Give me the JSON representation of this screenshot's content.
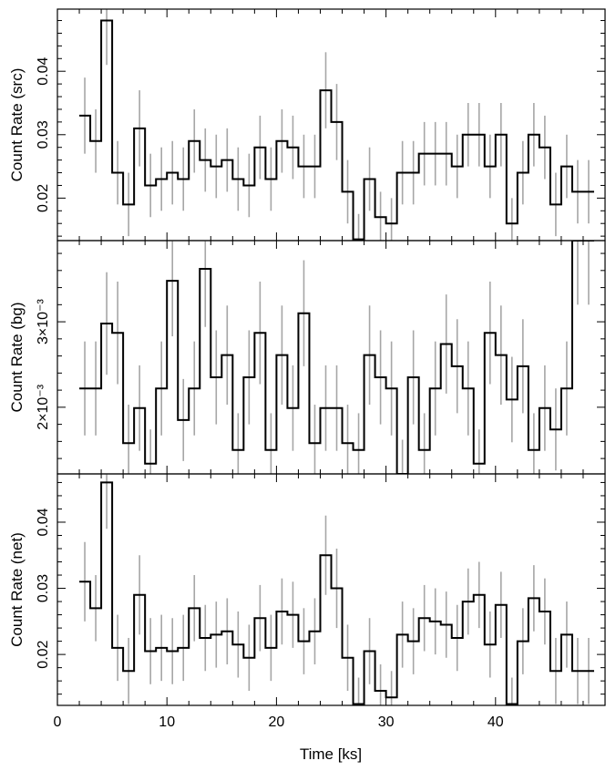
{
  "chart_data": {
    "type": "line",
    "style": "step-with-error-bars",
    "xlabel": "Time [ks]",
    "xlim": [
      0,
      50
    ],
    "xticks": [
      0,
      10,
      20,
      30,
      40
    ],
    "bin_width": 1.0,
    "x": [
      2.5,
      3.5,
      4.5,
      5.5,
      6.5,
      7.5,
      8.5,
      9.5,
      10.5,
      11.5,
      12.5,
      13.5,
      14.5,
      15.5,
      16.5,
      17.5,
      18.5,
      19.5,
      20.5,
      21.5,
      22.5,
      23.5,
      24.5,
      25.5,
      26.5,
      27.5,
      28.5,
      29.5,
      30.5,
      31.5,
      32.5,
      33.5,
      34.5,
      35.5,
      36.5,
      37.5,
      38.5,
      39.5,
      40.5,
      41.5,
      42.5,
      43.5,
      44.5,
      45.5,
      46.5,
      47.5,
      48.5
    ],
    "panels": [
      {
        "ylabel": "Count Rate (src)",
        "ylim": [
          0.0133,
          0.0498
        ],
        "yticks": [
          0.02,
          0.03,
          0.04
        ],
        "ytick_labels": [
          "0.02",
          "0.03",
          "0.04"
        ],
        "values": [
          0.033,
          0.029,
          0.048,
          0.024,
          0.019,
          0.031,
          0.022,
          0.023,
          0.024,
          0.023,
          0.029,
          0.026,
          0.025,
          0.026,
          0.023,
          0.022,
          0.028,
          0.023,
          0.029,
          0.028,
          0.025,
          0.025,
          0.037,
          0.032,
          0.021,
          0.0135,
          0.023,
          0.017,
          0.016,
          0.024,
          0.024,
          0.027,
          0.027,
          0.027,
          0.025,
          0.03,
          0.03,
          0.025,
          0.03,
          0.016,
          0.024,
          0.03,
          0.028,
          0.019,
          0.025,
          0.021,
          0.021
        ],
        "errors": [
          0.006,
          0.005,
          0.007,
          0.005,
          0.005,
          0.006,
          0.005,
          0.005,
          0.005,
          0.005,
          0.005,
          0.005,
          0.005,
          0.005,
          0.005,
          0.005,
          0.005,
          0.005,
          0.005,
          0.005,
          0.005,
          0.005,
          0.006,
          0.006,
          0.005,
          0.004,
          0.005,
          0.004,
          0.004,
          0.005,
          0.005,
          0.005,
          0.005,
          0.005,
          0.005,
          0.005,
          0.005,
          0.005,
          0.005,
          0.004,
          0.005,
          0.005,
          0.005,
          0.005,
          0.005,
          0.005,
          0.005
        ]
      },
      {
        "ylabel": "Count Rate (bg)",
        "ylim": [
          0.00122,
          0.00395
        ],
        "yticks": [
          0.002,
          0.003
        ],
        "ytick_labels": [
          "2×10⁻³",
          "3×10⁻³"
        ],
        "values": [
          0.00222,
          0.00222,
          0.00298,
          0.00287,
          0.00158,
          0.00199,
          0.00134,
          0.00222,
          0.00348,
          0.00185,
          0.00222,
          0.00362,
          0.00235,
          0.00261,
          0.0015,
          0.00235,
          0.00287,
          0.0015,
          0.00261,
          0.00199,
          0.0031,
          0.00158,
          0.00199,
          0.00199,
          0.00158,
          0.0015,
          0.00261,
          0.00235,
          0.00222,
          0.00122,
          0.00235,
          0.0015,
          0.00222,
          0.00274,
          0.00248,
          0.00222,
          0.00134,
          0.00287,
          0.00261,
          0.00209,
          0.00248,
          0.0015,
          0.00199,
          0.00174,
          0.00222,
          0.00395,
          0.00395
        ],
        "errors": [
          0.00055,
          0.00055,
          0.0006,
          0.0006,
          0.00045,
          0.0005,
          0.0004,
          0.00055,
          0.00065,
          0.00048,
          0.00055,
          0.00068,
          0.00055,
          0.00058,
          0.00043,
          0.00055,
          0.0006,
          0.00043,
          0.00058,
          0.0005,
          0.00062,
          0.00045,
          0.0005,
          0.0005,
          0.00045,
          0.00043,
          0.00058,
          0.00055,
          0.00055,
          0.0004,
          0.00055,
          0.00043,
          0.00055,
          0.00058,
          0.00055,
          0.00055,
          0.0004,
          0.0006,
          0.00058,
          0.0005,
          0.00055,
          0.00043,
          0.0005,
          0.00048,
          0.00055,
          0.00075,
          0.00075
        ]
      },
      {
        "ylabel": "Count Rate (net)",
        "ylim": [
          0.0123,
          0.0473
        ],
        "yticks": [
          0.02,
          0.03,
          0.04
        ],
        "ytick_labels": [
          "0.02",
          "0.03",
          "0.04"
        ],
        "values": [
          0.031,
          0.027,
          0.046,
          0.021,
          0.0175,
          0.029,
          0.0205,
          0.021,
          0.0205,
          0.021,
          0.027,
          0.0225,
          0.023,
          0.0235,
          0.0215,
          0.0195,
          0.0255,
          0.021,
          0.0265,
          0.026,
          0.022,
          0.0235,
          0.035,
          0.03,
          0.0195,
          0.0125,
          0.0205,
          0.0145,
          0.0135,
          0.023,
          0.022,
          0.0255,
          0.025,
          0.0245,
          0.0225,
          0.028,
          0.029,
          0.0215,
          0.0275,
          0.0125,
          0.022,
          0.0285,
          0.0265,
          0.0175,
          0.023,
          0.0175,
          0.0175
        ],
        "errors": [
          0.006,
          0.005,
          0.007,
          0.005,
          0.005,
          0.006,
          0.005,
          0.005,
          0.005,
          0.005,
          0.005,
          0.005,
          0.005,
          0.005,
          0.005,
          0.005,
          0.005,
          0.005,
          0.005,
          0.005,
          0.005,
          0.005,
          0.006,
          0.006,
          0.005,
          0.004,
          0.005,
          0.004,
          0.004,
          0.005,
          0.005,
          0.005,
          0.005,
          0.005,
          0.005,
          0.005,
          0.005,
          0.005,
          0.005,
          0.004,
          0.005,
          0.005,
          0.005,
          0.005,
          0.005,
          0.005,
          0.005
        ]
      }
    ],
    "colors": {
      "step": "#000000",
      "error_bar": "#a6a6a6"
    }
  }
}
